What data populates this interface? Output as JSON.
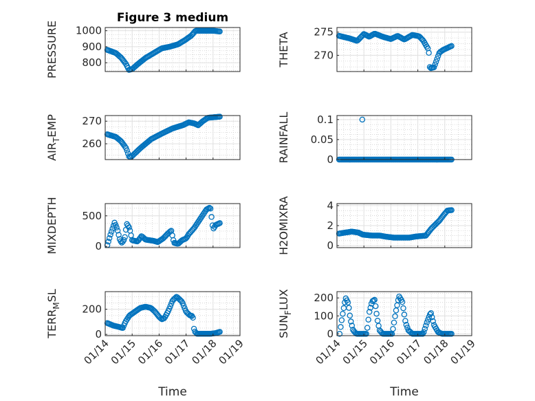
{
  "figure_title": "Figure 3 medium",
  "marker_color": "#0072BD",
  "chart_data": [
    {
      "type": "scatter",
      "name": "pressure",
      "title": "Figure 3 medium",
      "ylabel": "PRESSURE",
      "ylabel_sub": "",
      "ylabel_tail": "",
      "xlabel": "",
      "ylim": [
        745,
        1020
      ],
      "yticks": [
        800,
        900,
        1000
      ],
      "ytick_labels": [
        "800",
        "900",
        "1000"
      ],
      "xlim": [
        0,
        5
      ],
      "xticks": [
        0,
        1,
        2,
        3,
        4,
        5
      ],
      "xtick_labels": [],
      "anchors": [
        [
          0.08,
          880
        ],
        [
          0.4,
          860
        ],
        [
          0.6,
          830
        ],
        [
          0.78,
          790
        ],
        [
          0.88,
          755
        ],
        [
          1.0,
          760
        ],
        [
          1.2,
          790
        ],
        [
          1.5,
          830
        ],
        [
          1.8,
          860
        ],
        [
          2.1,
          890
        ],
        [
          2.4,
          900
        ],
        [
          2.7,
          915
        ],
        [
          2.95,
          940
        ],
        [
          3.2,
          970
        ],
        [
          3.35,
          1000
        ],
        [
          3.7,
          1000
        ],
        [
          4.0,
          1000
        ],
        [
          4.25,
          995
        ]
      ]
    },
    {
      "type": "scatter",
      "name": "theta",
      "title": "",
      "ylabel": "THETA",
      "ylabel_sub": "",
      "ylabel_tail": "",
      "ylim": [
        266.5,
        276
      ],
      "yticks": [
        270,
        275
      ],
      "ytick_labels": [
        "270",
        "275"
      ],
      "xlim": [
        0,
        5
      ],
      "xticks": [
        0,
        1,
        2,
        3,
        4,
        5
      ],
      "xtick_labels": [],
      "anchors": [
        [
          0.08,
          274.2
        ],
        [
          0.5,
          273.6
        ],
        [
          0.75,
          273.1
        ],
        [
          1.0,
          274.6
        ],
        [
          1.2,
          274
        ],
        [
          1.4,
          274.7
        ],
        [
          1.7,
          274
        ],
        [
          2.0,
          273.5
        ],
        [
          2.25,
          274.2
        ],
        [
          2.5,
          273.4
        ],
        [
          2.8,
          274.4
        ],
        [
          3.05,
          274.1
        ],
        [
          3.2,
          273.2
        ],
        [
          3.4,
          271.2
        ],
        [
          3.45,
          267.2
        ],
        [
          3.6,
          267.4
        ],
        [
          3.8,
          270.6
        ],
        [
          3.95,
          271.2
        ],
        [
          4.25,
          272
        ]
      ]
    },
    {
      "type": "scatter",
      "name": "air_temp",
      "title": "",
      "ylabel": "AIR",
      "ylabel_sub": "T",
      "ylabel_tail": "EMP",
      "ylim": [
        253,
        272.5
      ],
      "yticks": [
        260,
        270
      ],
      "ytick_labels": [
        "260",
        "270"
      ],
      "xlim": [
        0,
        5
      ],
      "xticks": [
        0,
        1,
        2,
        3,
        4,
        5
      ],
      "xtick_labels": [],
      "anchors": [
        [
          0.08,
          264.2
        ],
        [
          0.4,
          263
        ],
        [
          0.6,
          261
        ],
        [
          0.78,
          258
        ],
        [
          0.88,
          254.5
        ],
        [
          0.95,
          254
        ],
        [
          1.3,
          258
        ],
        [
          1.7,
          262
        ],
        [
          2.1,
          264.5
        ],
        [
          2.5,
          266.8
        ],
        [
          2.9,
          268.3
        ],
        [
          3.1,
          269.5
        ],
        [
          3.3,
          269
        ],
        [
          3.45,
          268.2
        ],
        [
          3.6,
          269.8
        ],
        [
          3.8,
          271.5
        ],
        [
          4.25,
          272
        ]
      ]
    },
    {
      "type": "scatter",
      "name": "rainfall",
      "title": "",
      "ylabel": "RAINFALL",
      "ylabel_sub": "",
      "ylabel_tail": "",
      "ylim": [
        0,
        0.11
      ],
      "yticks": [
        0,
        0.05,
        0.1
      ],
      "ytick_labels": [
        "0",
        "0.05",
        "0.1"
      ],
      "xlim": [
        0,
        5
      ],
      "xticks": [
        0,
        1,
        2,
        3,
        4,
        5
      ],
      "xtick_labels": [],
      "anchors": [
        [
          0.08,
          0
        ],
        [
          4.25,
          0
        ]
      ],
      "extra_points": [
        [
          0.94,
          0.1
        ]
      ]
    },
    {
      "type": "scatter",
      "name": "mixdepth",
      "title": "",
      "ylabel": "MIXDEPTH",
      "ylabel_sub": "",
      "ylabel_tail": "",
      "ylim": [
        -20,
        700
      ],
      "yticks": [
        0,
        500
      ],
      "ytick_labels": [
        "0",
        "500"
      ],
      "xlim": [
        0,
        5
      ],
      "xticks": [
        0,
        1,
        2,
        3,
        4,
        5
      ],
      "xtick_labels": [],
      "anchors": [
        [
          0.08,
          20
        ],
        [
          0.2,
          200
        ],
        [
          0.35,
          390
        ],
        [
          0.45,
          280
        ],
        [
          0.55,
          100
        ],
        [
          0.62,
          60
        ],
        [
          0.72,
          120
        ],
        [
          0.8,
          370
        ],
        [
          0.9,
          300
        ],
        [
          1.0,
          100
        ],
        [
          1.2,
          80
        ],
        [
          1.35,
          170
        ],
        [
          1.5,
          110
        ],
        [
          1.8,
          90
        ],
        [
          1.95,
          70
        ],
        [
          2.15,
          130
        ],
        [
          2.3,
          200
        ],
        [
          2.45,
          260
        ],
        [
          2.55,
          60
        ],
        [
          2.7,
          40
        ],
        [
          2.85,
          100
        ],
        [
          3.0,
          130
        ],
        [
          3.1,
          200
        ],
        [
          3.3,
          300
        ],
        [
          3.45,
          400
        ],
        [
          3.6,
          500
        ],
        [
          3.75,
          600
        ],
        [
          3.9,
          640
        ],
        [
          4.0,
          280
        ],
        [
          4.1,
          350
        ],
        [
          4.25,
          380
        ]
      ]
    },
    {
      "type": "scatter",
      "name": "h2omixra",
      "title": "",
      "ylabel": "H2OMIXRA",
      "ylabel_sub": "",
      "ylabel_tail": "",
      "ylim": [
        -0.2,
        4.2
      ],
      "yticks": [
        0,
        2,
        4
      ],
      "ytick_labels": [
        "0",
        "2",
        "4"
      ],
      "xlim": [
        0,
        5
      ],
      "xticks": [
        0,
        1,
        2,
        3,
        4,
        5
      ],
      "xtick_labels": [],
      "anchors": [
        [
          0.08,
          1.2
        ],
        [
          0.3,
          1.3
        ],
        [
          0.55,
          1.4
        ],
        [
          0.8,
          1.3
        ],
        [
          0.95,
          1.1
        ],
        [
          1.3,
          1.0
        ],
        [
          1.6,
          1.0
        ],
        [
          1.8,
          0.9
        ],
        [
          2.1,
          0.8
        ],
        [
          2.4,
          0.8
        ],
        [
          2.7,
          0.8
        ],
        [
          2.9,
          0.9
        ],
        [
          3.3,
          1.0
        ],
        [
          3.5,
          1.7
        ],
        [
          3.8,
          2.5
        ],
        [
          4.0,
          3.2
        ],
        [
          4.1,
          3.5
        ],
        [
          4.25,
          3.55
        ]
      ]
    },
    {
      "type": "scatter",
      "name": "terr_msl",
      "title": "",
      "ylabel": "TERR",
      "ylabel_sub": "M",
      "ylabel_tail": "SL",
      "ylim": [
        -10,
        340
      ],
      "yticks": [
        0,
        200
      ],
      "ytick_labels": [
        "0",
        "200"
      ],
      "xlim": [
        0,
        5
      ],
      "xticks": [
        0,
        1,
        2,
        3,
        4,
        5
      ],
      "xtick_labels": [
        "01/14",
        "01/15",
        "01/16",
        "01/17",
        "01/18",
        "01/19"
      ],
      "xlabel": "Time",
      "anchors": [
        [
          0.08,
          90
        ],
        [
          0.3,
          70
        ],
        [
          0.5,
          60
        ],
        [
          0.65,
          50
        ],
        [
          0.75,
          100
        ],
        [
          0.9,
          150
        ],
        [
          1.1,
          180
        ],
        [
          1.3,
          210
        ],
        [
          1.5,
          220
        ],
        [
          1.7,
          210
        ],
        [
          1.85,
          180
        ],
        [
          2.0,
          140
        ],
        [
          2.1,
          120
        ],
        [
          2.2,
          130
        ],
        [
          2.35,
          190
        ],
        [
          2.5,
          270
        ],
        [
          2.65,
          300
        ],
        [
          2.85,
          260
        ],
        [
          3.0,
          180
        ],
        [
          3.15,
          150
        ],
        [
          3.25,
          145
        ],
        [
          3.3,
          30
        ],
        [
          3.4,
          5
        ],
        [
          3.7,
          5
        ],
        [
          3.9,
          5
        ],
        [
          4.1,
          10
        ],
        [
          4.25,
          20
        ]
      ]
    },
    {
      "type": "scatter",
      "name": "sun_flux",
      "title": "",
      "ylabel": "SUN",
      "ylabel_sub": "F",
      "ylabel_tail": "LUX",
      "ylim": [
        -10,
        235
      ],
      "yticks": [
        0,
        100,
        200
      ],
      "ytick_labels": [
        "0",
        "100",
        "200"
      ],
      "xlim": [
        0,
        5
      ],
      "xticks": [
        0,
        1,
        2,
        3,
        4,
        5
      ],
      "xtick_labels": [
        "01/14",
        "01/15",
        "01/16",
        "01/17",
        "01/18",
        "01/19"
      ],
      "xlabel": "Time",
      "anchors": [
        [
          0.1,
          0
        ],
        [
          0.2,
          100
        ],
        [
          0.32,
          200
        ],
        [
          0.42,
          170
        ],
        [
          0.5,
          80
        ],
        [
          0.6,
          20
        ],
        [
          0.72,
          0
        ],
        [
          1.1,
          0
        ],
        [
          1.2,
          120
        ],
        [
          1.3,
          180
        ],
        [
          1.4,
          190
        ],
        [
          1.5,
          80
        ],
        [
          1.58,
          20
        ],
        [
          1.7,
          0
        ],
        [
          2.05,
          0
        ],
        [
          2.18,
          120
        ],
        [
          2.3,
          210
        ],
        [
          2.42,
          180
        ],
        [
          2.55,
          60
        ],
        [
          2.65,
          20
        ],
        [
          2.8,
          0
        ],
        [
          3.2,
          0
        ],
        [
          3.35,
          70
        ],
        [
          3.48,
          120
        ],
        [
          3.6,
          50
        ],
        [
          3.75,
          10
        ],
        [
          3.9,
          0
        ],
        [
          4.25,
          0
        ]
      ]
    }
  ]
}
